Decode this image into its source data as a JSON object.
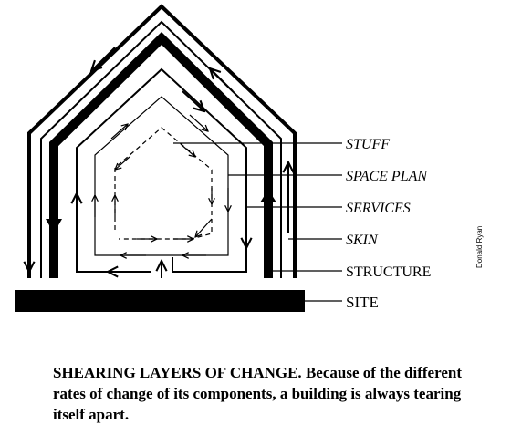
{
  "diagram": {
    "layers": [
      {
        "id": "stuff",
        "label": "STUFF",
        "italic": true
      },
      {
        "id": "space-plan",
        "label": "SPACE PLAN",
        "italic": true
      },
      {
        "id": "services",
        "label": "SERVICES",
        "italic": true
      },
      {
        "id": "skin",
        "label": "SKIN",
        "italic": true
      },
      {
        "id": "structure",
        "label": "STRUCTURE",
        "italic": false
      },
      {
        "id": "site",
        "label": "SITE",
        "italic": false
      }
    ]
  },
  "credit": "Donald Ryan",
  "caption": {
    "lead": "SHEARING LAYERS OF CHANGE.",
    "text": "Because of the different rates of change of its components, a building is always tearing itself apart."
  },
  "colors": {
    "ink": "#000000",
    "background": "#ffffff"
  }
}
